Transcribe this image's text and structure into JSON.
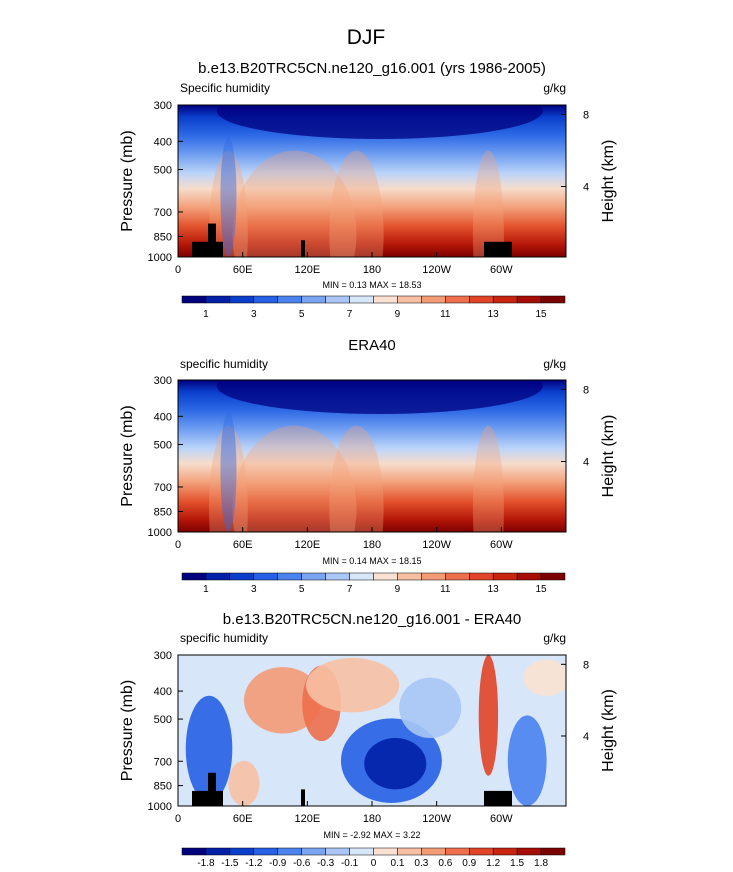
{
  "page_title": "DJF",
  "chart_data": [
    {
      "type": "heatmap",
      "title": "b.e13.B20TRC5CN.ne120_g16.001 (yrs 1986-2005)",
      "left_label": "Specific humidity",
      "right_label": "g/kg",
      "ylabel": "Pressure (mb)",
      "ylabel_right": "Height (km)",
      "x_ticks": [
        "0",
        "60E",
        "120E",
        "180",
        "120W",
        "60W"
      ],
      "x_tick_values": [
        0,
        60,
        120,
        180,
        240,
        300
      ],
      "xlim": [
        0,
        360
      ],
      "y_ticks": [
        "300",
        "400",
        "500",
        "700",
        "850",
        "1000"
      ],
      "y_tick_values": [
        300,
        400,
        500,
        700,
        850,
        1000
      ],
      "ylim": [
        300,
        1000
      ],
      "y_right_ticks": [
        "8",
        "4"
      ],
      "y_right_values": [
        8,
        4
      ],
      "min_max_text": "MIN =  0.13  MAX =  18.53",
      "colorbar_labels": [
        "1",
        "3",
        "5",
        "7",
        "9",
        "11",
        "13",
        "15"
      ],
      "colorbar_colors": [
        "#00007f",
        "#0020a8",
        "#0a3fcc",
        "#2660e6",
        "#4a82ee",
        "#7aa4f2",
        "#a9c6f6",
        "#d8e6fa",
        "#fbe1d2",
        "#f8c0a3",
        "#f39a76",
        "#ee6f4c",
        "#e24427",
        "#c82410",
        "#a60d04",
        "#7d0000"
      ],
      "topography": true
    },
    {
      "type": "heatmap",
      "title": "ERA40",
      "left_label": "specific humidity",
      "right_label": "g/kg",
      "ylabel": "Pressure (mb)",
      "ylabel_right": "Height (km)",
      "x_ticks": [
        "0",
        "60E",
        "120E",
        "180",
        "120W",
        "60W"
      ],
      "x_tick_values": [
        0,
        60,
        120,
        180,
        240,
        300
      ],
      "xlim": [
        0,
        360
      ],
      "y_ticks": [
        "300",
        "400",
        "500",
        "700",
        "850",
        "1000"
      ],
      "y_tick_values": [
        300,
        400,
        500,
        700,
        850,
        1000
      ],
      "ylim": [
        300,
        1000
      ],
      "y_right_ticks": [
        "8",
        "4"
      ],
      "y_right_values": [
        8,
        4
      ],
      "min_max_text": "MIN =  0.14  MAX =  18.15",
      "colorbar_labels": [
        "1",
        "3",
        "5",
        "7",
        "9",
        "11",
        "13",
        "15"
      ],
      "colorbar_colors": [
        "#00007f",
        "#0020a8",
        "#0a3fcc",
        "#2660e6",
        "#4a82ee",
        "#7aa4f2",
        "#a9c6f6",
        "#d8e6fa",
        "#fbe1d2",
        "#f8c0a3",
        "#f39a76",
        "#ee6f4c",
        "#e24427",
        "#c82410",
        "#a60d04",
        "#7d0000"
      ],
      "topography": false
    },
    {
      "type": "heatmap",
      "title": "b.e13.B20TRC5CN.ne120_g16.001 - ERA40",
      "left_label": "specific humidity",
      "right_label": "g/kg",
      "ylabel": "Pressure (mb)",
      "ylabel_right": "Height (km)",
      "x_ticks": [
        "0",
        "60E",
        "120E",
        "180",
        "120W",
        "60W"
      ],
      "x_tick_values": [
        0,
        60,
        120,
        180,
        240,
        300
      ],
      "xlim": [
        0,
        360
      ],
      "y_ticks": [
        "300",
        "400",
        "500",
        "700",
        "850",
        "1000"
      ],
      "y_tick_values": [
        300,
        400,
        500,
        700,
        850,
        1000
      ],
      "ylim": [
        300,
        1000
      ],
      "y_right_ticks": [
        "8",
        "4"
      ],
      "y_right_values": [
        8,
        4
      ],
      "min_max_text": "MIN = -2.92  MAX =  3.22",
      "colorbar_labels": [
        "-1.8",
        "-1.5",
        "-1.2",
        "-0.9",
        "-0.6",
        "-0.3",
        "-0.1",
        "0",
        "0.1",
        "0.3",
        "0.6",
        "0.9",
        "1.2",
        "1.5",
        "1.8"
      ],
      "colorbar_colors": [
        "#00007f",
        "#0020a8",
        "#0a3fcc",
        "#2660e6",
        "#4a82ee",
        "#7aa4f2",
        "#a9c6f6",
        "#d8e6fa",
        "#fbe1d2",
        "#f8c0a3",
        "#f39a76",
        "#ee6f4c",
        "#e24427",
        "#c82410",
        "#a60d04",
        "#7d0000"
      ],
      "topography": true
    }
  ]
}
